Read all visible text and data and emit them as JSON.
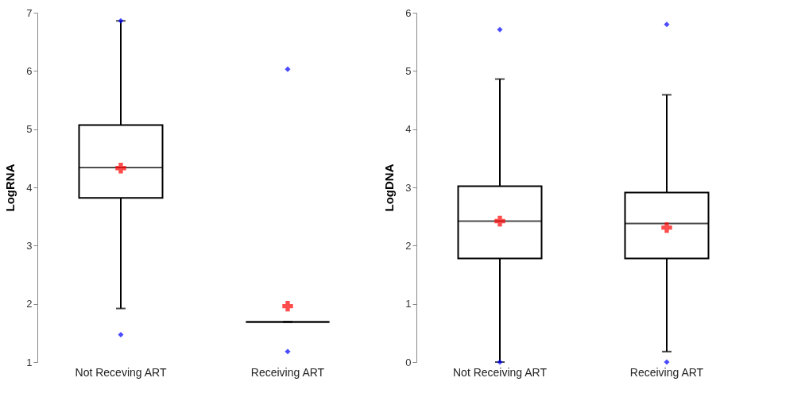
{
  "chart_data": [
    {
      "type": "box",
      "ylabel": "LogRNA",
      "categories": [
        "Not Receving ART",
        "Receiving ART"
      ],
      "ylim": [
        1,
        7
      ],
      "yticks": [
        1,
        2,
        3,
        4,
        5,
        6,
        7
      ],
      "grid": false,
      "series": [
        {
          "color": "#000000",
          "boxes": [
            {
              "low": 1.92,
              "q1": 3.82,
              "median": 4.34,
              "q3": 5.07,
              "high": 6.86,
              "mean": 4.33,
              "outliers": [
                6.86,
                1.47
              ]
            },
            {
              "low": 1.69,
              "q1": 1.69,
              "median": 1.69,
              "q3": 1.69,
              "high": 1.69,
              "mean": 1.96,
              "outliers": [
                6.03,
                1.18
              ]
            }
          ]
        }
      ]
    },
    {
      "type": "box",
      "ylabel": "LogDNA",
      "categories": [
        "Not Receiving ART",
        "Receiving ART"
      ],
      "ylim": [
        0,
        6
      ],
      "yticks": [
        0,
        1,
        2,
        3,
        4,
        5,
        6
      ],
      "grid": false,
      "series": [
        {
          "color": "#000000",
          "boxes": [
            {
              "low": 0,
              "q1": 1.78,
              "median": 2.42,
              "q3": 3.02,
              "high": 4.86,
              "mean": 2.42,
              "outliers": [
                5.71,
                0
              ]
            },
            {
              "low": 0.18,
              "q1": 1.78,
              "median": 2.38,
              "q3": 2.91,
              "high": 4.59,
              "mean": 2.31,
              "outliers": [
                5.8,
                0
              ]
            }
          ]
        }
      ]
    }
  ]
}
